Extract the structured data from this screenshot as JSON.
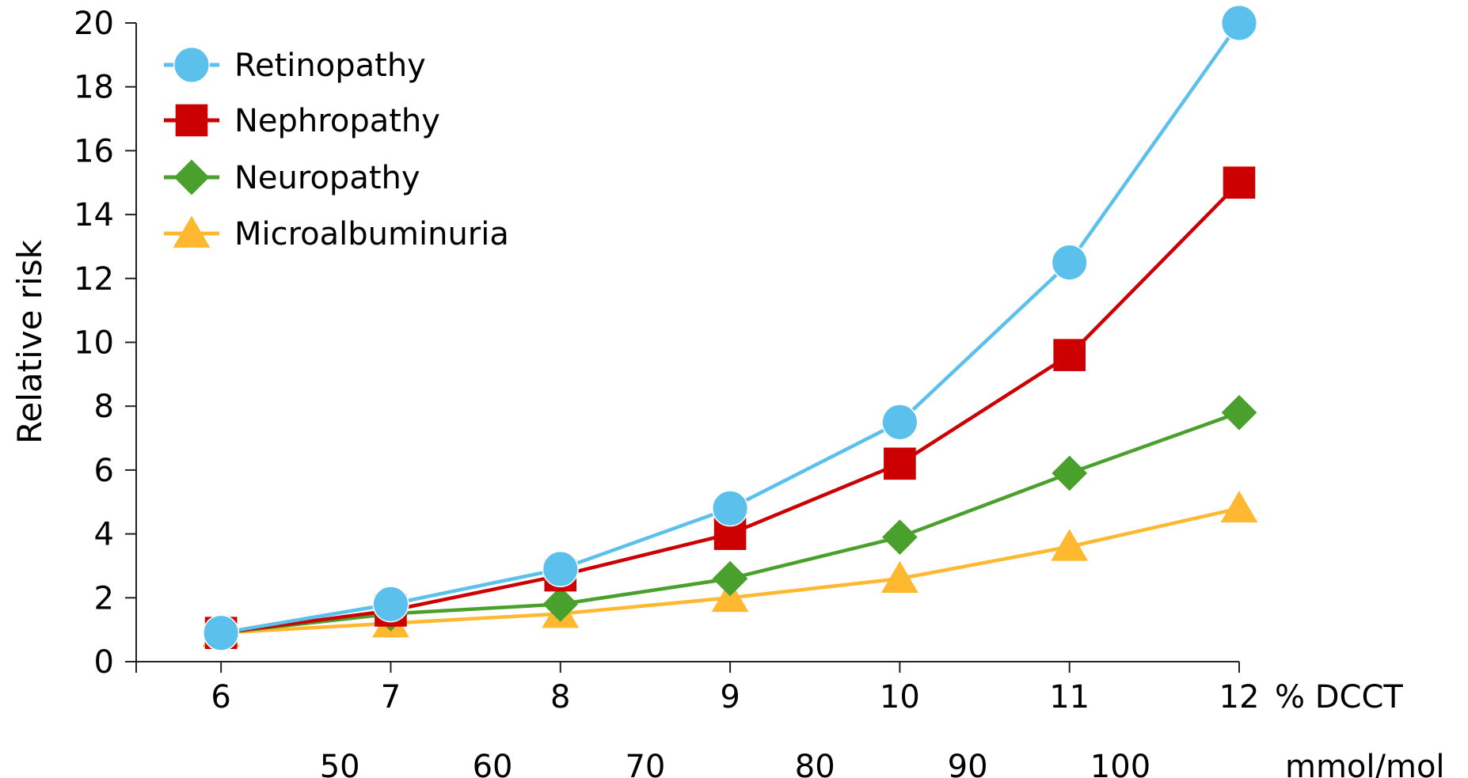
{
  "chart_data": {
    "type": "line",
    "ylabel": "Relative risk",
    "x_unit_label": "% DCCT",
    "x2_unit_label": "mmol/mol",
    "x": [
      6,
      7,
      8,
      9,
      10,
      11,
      12
    ],
    "x_ticks": [
      "6",
      "7",
      "8",
      "9",
      "10",
      "11",
      "12"
    ],
    "x2_ticks": [
      {
        "label": "50",
        "at": 6.7
      },
      {
        "label": "60",
        "at": 7.6
      },
      {
        "label": "70",
        "at": 8.5
      },
      {
        "label": "80",
        "at": 9.5
      },
      {
        "label": "90",
        "at": 10.4
      },
      {
        "label": "100",
        "at": 11.3
      }
    ],
    "ylim": [
      0,
      20
    ],
    "y_ticks": [
      "0",
      "2",
      "4",
      "6",
      "8",
      "10",
      "12",
      "14",
      "16",
      "18",
      "20"
    ],
    "xlim": [
      5.5,
      12
    ],
    "grid": false,
    "legend_position": "top-left",
    "series": [
      {
        "name": "Retinopathy",
        "color": "#5bc0eb",
        "marker": "circle",
        "values": [
          0.9,
          1.8,
          2.9,
          4.8,
          7.5,
          12.5,
          20
        ]
      },
      {
        "name": "Nephropathy",
        "color": "#cc0000",
        "marker": "square",
        "values": [
          0.9,
          1.6,
          2.7,
          4.0,
          6.2,
          9.6,
          15.0
        ]
      },
      {
        "name": "Neuropathy",
        "color": "#4aa02c",
        "marker": "diamond",
        "values": [
          0.9,
          1.5,
          1.8,
          2.6,
          3.9,
          5.9,
          7.8
        ]
      },
      {
        "name": "Microalbuminuria",
        "color": "#ffb830",
        "marker": "triangle",
        "values": [
          0.9,
          1.2,
          1.5,
          2.0,
          2.6,
          3.6,
          4.8
        ]
      }
    ]
  }
}
